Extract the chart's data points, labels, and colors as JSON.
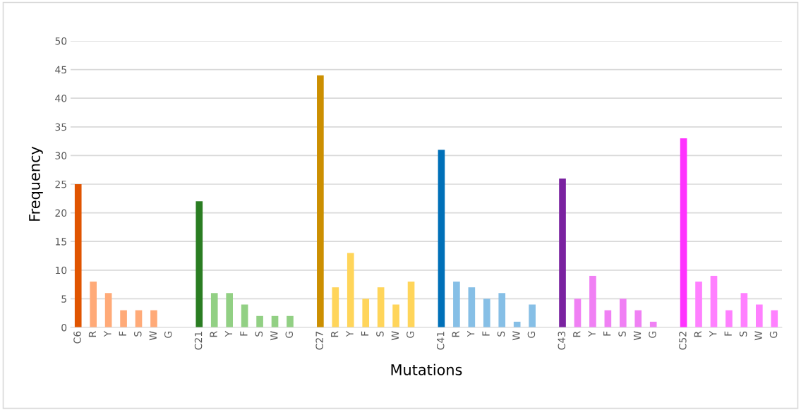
{
  "chart_data": {
    "type": "bar",
    "xlabel": "Mutations",
    "ylabel": "Frequency",
    "categories": [
      "C6",
      "R",
      "Y",
      "F",
      "S",
      "W",
      "G",
      null,
      "C21",
      "R",
      "Y",
      "F",
      "S",
      "W",
      "G",
      null,
      "C27",
      "R",
      "Y",
      "F",
      "S",
      "W",
      "G",
      null,
      "C41",
      "R",
      "Y",
      "F",
      "S",
      "W",
      "G",
      null,
      "C43",
      "R",
      "Y",
      "F",
      "S",
      "W",
      "G",
      null,
      "C52",
      "R",
      "Y",
      "F",
      "S",
      "W",
      "G"
    ],
    "values": [
      25,
      8,
      6,
      3,
      3,
      3,
      0,
      null,
      22,
      6,
      6,
      4,
      2,
      2,
      2,
      null,
      44,
      7,
      13,
      5,
      7,
      4,
      8,
      null,
      31,
      8,
      7,
      5,
      6,
      1,
      4,
      null,
      26,
      5,
      9,
      3,
      5,
      3,
      1,
      null,
      33,
      8,
      9,
      3,
      6,
      4,
      3
    ],
    "colors": [
      "#e05400",
      "#ffaa78",
      "#ffaa78",
      "#ffaa78",
      "#ffaa78",
      "#ffaa78",
      "#ffaa78",
      null,
      "#2a7d22",
      "#92d084",
      "#92d084",
      "#92d084",
      "#92d084",
      "#92d084",
      "#92d084",
      null,
      "#cc8f00",
      "#ffd55a",
      "#ffd55a",
      "#ffd55a",
      "#ffd55a",
      "#ffd55a",
      "#ffd55a",
      null,
      "#0070b8",
      "#86bfe6",
      "#86bfe6",
      "#86bfe6",
      "#86bfe6",
      "#86bfe6",
      "#86bfe6",
      null,
      "#7a22a0",
      "#f080f4",
      "#f080f4",
      "#f080f4",
      "#f080f4",
      "#f080f4",
      "#f080f4",
      null,
      "#ff33ff",
      "#ff80ff",
      "#ff80ff",
      "#ff80ff",
      "#ff80ff",
      "#ff80ff",
      "#ff80ff"
    ],
    "ylim": [
      0,
      50
    ],
    "yticks": [
      0,
      5,
      10,
      15,
      20,
      25,
      30,
      35,
      40,
      45,
      50
    ],
    "grid": "y"
  }
}
